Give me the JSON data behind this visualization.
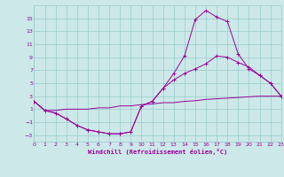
{
  "bg_color": "#cce8e8",
  "line_color": "#990099",
  "grid_color": "#99cccc",
  "xlabel": "Windchill (Refroidissement éolien,°C)",
  "xlim": [
    0,
    23
  ],
  "ylim": [
    -4,
    17
  ],
  "yticks": [
    -3,
    -1,
    1,
    3,
    5,
    7,
    9,
    11,
    13,
    15
  ],
  "xticks": [
    0,
    1,
    2,
    3,
    4,
    5,
    6,
    7,
    8,
    9,
    10,
    11,
    12,
    13,
    14,
    15,
    16,
    17,
    18,
    19,
    20,
    21,
    22,
    23
  ],
  "curve1_x": [
    0,
    1,
    2,
    3,
    4,
    5,
    6,
    7,
    8,
    9,
    10,
    11,
    12,
    13,
    14,
    15,
    16,
    17,
    18,
    19,
    20,
    21,
    22,
    23
  ],
  "curve1_y": [
    2.2,
    0.8,
    0.4,
    -0.5,
    -1.5,
    -2.2,
    -2.5,
    -2.8,
    -2.8,
    -2.5,
    1.5,
    2.2,
    4.2,
    6.5,
    9.2,
    14.8,
    16.2,
    15.2,
    14.5,
    9.5,
    7.2,
    6.2,
    5.0,
    3.0
  ],
  "curve2_x": [
    0,
    1,
    2,
    3,
    4,
    5,
    6,
    7,
    8,
    9,
    10,
    11,
    12,
    13,
    14,
    15,
    16,
    17,
    18,
    19,
    20,
    21,
    22,
    23
  ],
  "curve2_y": [
    2.2,
    0.8,
    0.4,
    -0.5,
    -1.5,
    -2.2,
    -2.5,
    -2.8,
    -2.8,
    -2.5,
    1.5,
    2.2,
    4.2,
    5.5,
    6.5,
    7.2,
    8.0,
    9.2,
    9.0,
    8.2,
    7.5,
    6.2,
    5.0,
    3.0
  ],
  "curve3_x": [
    0,
    1,
    2,
    3,
    4,
    5,
    6,
    7,
    8,
    9,
    10,
    11,
    12,
    13,
    14,
    15,
    16,
    17,
    18,
    19,
    20,
    21,
    22,
    23
  ],
  "curve3_y": [
    2.2,
    0.8,
    0.8,
    1.0,
    1.0,
    1.0,
    1.2,
    1.2,
    1.5,
    1.5,
    1.7,
    1.8,
    2.0,
    2.0,
    2.2,
    2.3,
    2.5,
    2.6,
    2.7,
    2.8,
    2.9,
    3.0,
    3.0,
    3.0
  ]
}
